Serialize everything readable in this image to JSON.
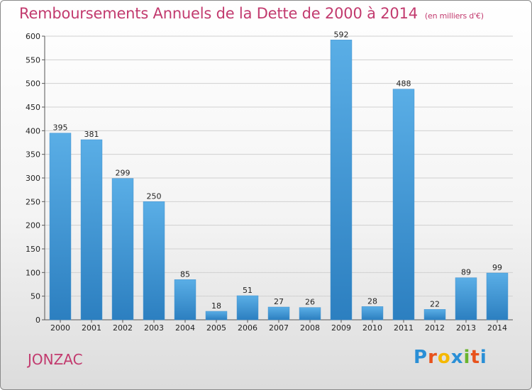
{
  "title": "Remboursements Annuels de la Dette de 2000 à 2014",
  "unit_note": "(en milliers d'€)",
  "commune": "JONZAC",
  "logo": {
    "letters": [
      "P",
      "r",
      "o",
      "x",
      "i",
      "t",
      "i"
    ],
    "colors": [
      "#2a8fd6",
      "#e8521c",
      "#f5b800",
      "#2a8fd6",
      "#6ab42d",
      "#e8521c",
      "#2a8fd6"
    ]
  },
  "colors": {
    "title": "#c23a6e",
    "bar_light": "#5aaee6",
    "bar_dark": "#2c7fc0",
    "grid": "#d0d0d0"
  },
  "chart_data": {
    "type": "bar",
    "categories": [
      "2000",
      "2001",
      "2002",
      "2003",
      "2004",
      "2005",
      "2006",
      "2007",
      "2008",
      "2009",
      "2010",
      "2011",
      "2012",
      "2013",
      "2014"
    ],
    "values": [
      395,
      381,
      299,
      250,
      85,
      18,
      51,
      27,
      26,
      592,
      28,
      488,
      22,
      89,
      99
    ],
    "ylim": [
      0,
      600
    ],
    "yticks": [
      0,
      50,
      100,
      150,
      200,
      250,
      300,
      350,
      400,
      450,
      500,
      550,
      600
    ],
    "grid": true,
    "data_labels": true
  }
}
